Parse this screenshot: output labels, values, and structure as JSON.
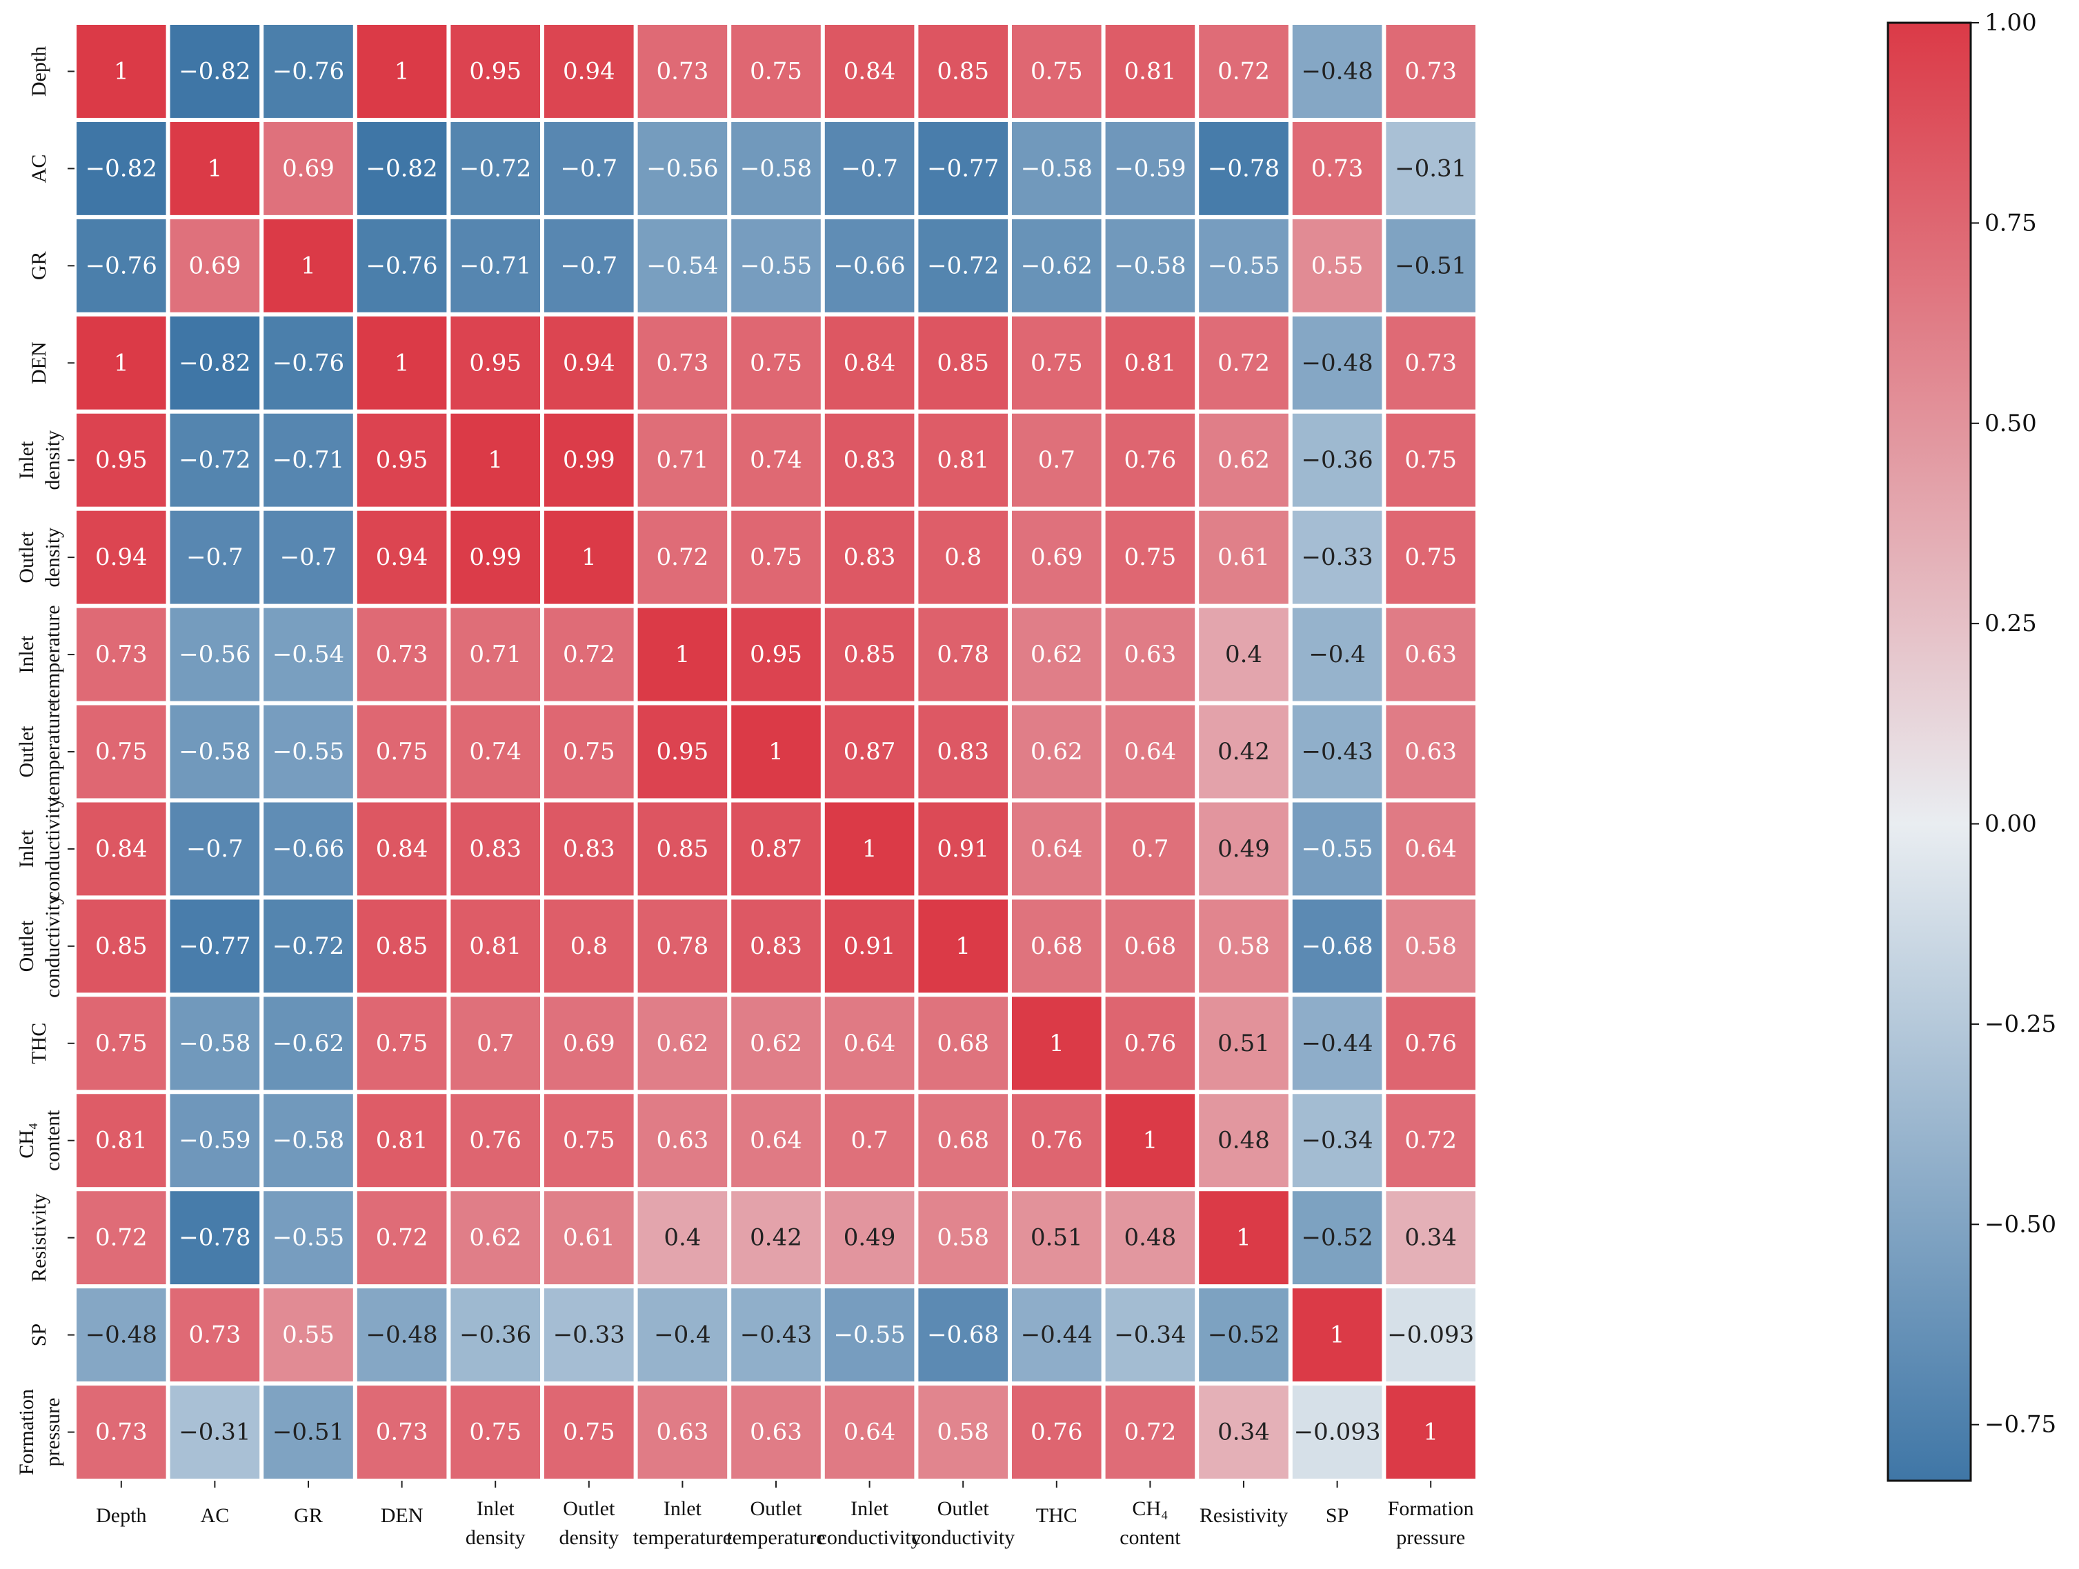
{
  "chart_data": {
    "type": "heatmap",
    "title": "",
    "xlabel": "",
    "ylabel": "",
    "labels": [
      [
        "Depth"
      ],
      [
        "AC"
      ],
      [
        "GR"
      ],
      [
        "DEN"
      ],
      [
        "Inlet",
        "density"
      ],
      [
        "Outlet",
        "density"
      ],
      [
        "Inlet",
        "temperature"
      ],
      [
        "Outlet",
        "temperature"
      ],
      [
        "Inlet",
        "conductivity"
      ],
      [
        "Outlet",
        "conductivity"
      ],
      [
        "THC"
      ],
      [
        "CH₄",
        "content"
      ],
      [
        "Resistivity"
      ],
      [
        "SP"
      ],
      [
        "Formation",
        "pressure"
      ]
    ],
    "values": [
      [
        "1",
        "-0.82",
        "-0.76",
        "1",
        "0.95",
        "0.94",
        "0.73",
        "0.75",
        "0.84",
        "0.85",
        "0.75",
        "0.81",
        "0.72",
        "-0.48",
        "0.73"
      ],
      [
        "-0.82",
        "1",
        "0.69",
        "-0.82",
        "-0.72",
        "-0.7",
        "-0.56",
        "-0.58",
        "-0.7",
        "-0.77",
        "-0.58",
        "-0.59",
        "-0.78",
        "0.73",
        "-0.31"
      ],
      [
        "-0.76",
        "0.69",
        "1",
        "-0.76",
        "-0.71",
        "-0.7",
        "-0.54",
        "-0.55",
        "-0.66",
        "-0.72",
        "-0.62",
        "-0.58",
        "-0.55",
        "0.55",
        "-0.51"
      ],
      [
        "1",
        "-0.82",
        "-0.76",
        "1",
        "0.95",
        "0.94",
        "0.73",
        "0.75",
        "0.84",
        "0.85",
        "0.75",
        "0.81",
        "0.72",
        "-0.48",
        "0.73"
      ],
      [
        "0.95",
        "-0.72",
        "-0.71",
        "0.95",
        "1",
        "0.99",
        "0.71",
        "0.74",
        "0.83",
        "0.81",
        "0.7",
        "0.76",
        "0.62",
        "-0.36",
        "0.75"
      ],
      [
        "0.94",
        "-0.7",
        "-0.7",
        "0.94",
        "0.99",
        "1",
        "0.72",
        "0.75",
        "0.83",
        "0.8",
        "0.69",
        "0.75",
        "0.61",
        "-0.33",
        "0.75"
      ],
      [
        "0.73",
        "-0.56",
        "-0.54",
        "0.73",
        "0.71",
        "0.72",
        "1",
        "0.95",
        "0.85",
        "0.78",
        "0.62",
        "0.63",
        "0.4",
        "-0.4",
        "0.63"
      ],
      [
        "0.75",
        "-0.58",
        "-0.55",
        "0.75",
        "0.74",
        "0.75",
        "0.95",
        "1",
        "0.87",
        "0.83",
        "0.62",
        "0.64",
        "0.42",
        "-0.43",
        "0.63"
      ],
      [
        "0.84",
        "-0.7",
        "-0.66",
        "0.84",
        "0.83",
        "0.83",
        "0.85",
        "0.87",
        "1",
        "0.91",
        "0.64",
        "0.7",
        "0.49",
        "-0.55",
        "0.64"
      ],
      [
        "0.85",
        "-0.77",
        "-0.72",
        "0.85",
        "0.81",
        "0.8",
        "0.78",
        "0.83",
        "0.91",
        "1",
        "0.68",
        "0.68",
        "0.58",
        "-0.68",
        "0.58"
      ],
      [
        "0.75",
        "-0.58",
        "-0.62",
        "0.75",
        "0.7",
        "0.69",
        "0.62",
        "0.62",
        "0.64",
        "0.68",
        "1",
        "0.76",
        "0.51",
        "-0.44",
        "0.76"
      ],
      [
        "0.81",
        "-0.59",
        "-0.58",
        "0.81",
        "0.76",
        "0.75",
        "0.63",
        "0.64",
        "0.7",
        "0.68",
        "0.76",
        "1",
        "0.48",
        "-0.34",
        "0.72"
      ],
      [
        "0.72",
        "-0.78",
        "-0.55",
        "0.72",
        "0.62",
        "0.61",
        "0.4",
        "0.42",
        "0.49",
        "0.58",
        "0.51",
        "0.48",
        "1",
        "-0.52",
        "0.34"
      ],
      [
        "-0.48",
        "0.73",
        "0.55",
        "-0.48",
        "-0.36",
        "-0.33",
        "-0.4",
        "-0.43",
        "-0.55",
        "-0.68",
        "-0.44",
        "-0.34",
        "-0.52",
        "1",
        "-0.093"
      ],
      [
        "0.73",
        "-0.31",
        "-0.51",
        "0.73",
        "0.75",
        "0.75",
        "0.63",
        "0.63",
        "0.64",
        "0.58",
        "0.76",
        "0.72",
        "0.34",
        "-0.093",
        "1"
      ]
    ],
    "colorbar": {
      "min": -0.82,
      "max": 1.0,
      "ticks": [
        "1.00",
        "0.75",
        "0.50",
        "0.25",
        "0.00",
        "−0.25",
        "−0.50",
        "−0.75"
      ],
      "tick_values": [
        1.0,
        0.75,
        0.5,
        0.25,
        0.0,
        -0.25,
        -0.5,
        -0.75
      ],
      "low_color": "#3f76a6",
      "mid_color": "#e9edf1",
      "high_color": "#db3a47"
    },
    "text_color_dark": "#222222",
    "text_color_light": "#ffffff"
  }
}
